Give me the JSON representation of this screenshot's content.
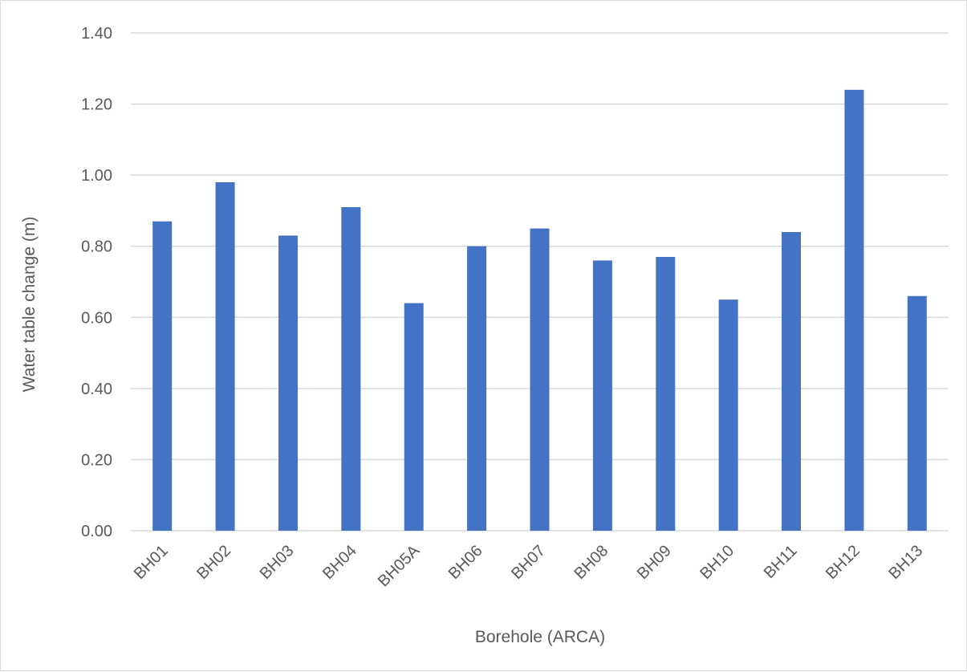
{
  "chart_data": {
    "type": "bar",
    "title": "",
    "xlabel": "Borehole (ARCA)",
    "ylabel": "Water table change (m)",
    "categories": [
      "BH01",
      "BH02",
      "BH03",
      "BH04",
      "BH05A",
      "BH06",
      "BH07",
      "BH08",
      "BH09",
      "BH10",
      "BH11",
      "BH12",
      "BH13"
    ],
    "values": [
      0.87,
      0.98,
      0.83,
      0.91,
      0.64,
      0.8,
      0.85,
      0.76,
      0.77,
      0.65,
      0.84,
      1.24,
      0.66
    ],
    "ylim": [
      0,
      1.4
    ],
    "yticks": [
      "0.00",
      "0.20",
      "0.40",
      "0.60",
      "0.80",
      "1.00",
      "1.20",
      "1.40"
    ],
    "grid": true,
    "legend": "none",
    "bar_color": "#4472C4",
    "grid_color": "#d9d9d9"
  }
}
